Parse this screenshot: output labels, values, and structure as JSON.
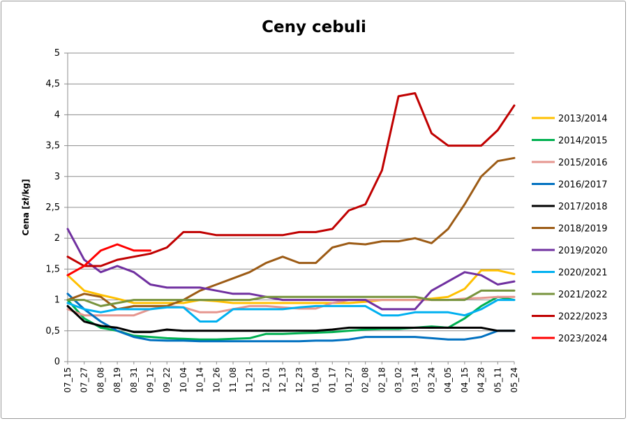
{
  "chart_data": {
    "type": "line",
    "title": "Ceny cebuli",
    "ylabel": "Cena [zł/kg]",
    "xlabel": "",
    "ylim": [
      0,
      5
    ],
    "yticks": [
      "0",
      "0,5",
      "1",
      "1,5",
      "2",
      "2,5",
      "3",
      "3,5",
      "4",
      "4,5",
      "5"
    ],
    "grid": "horizontal",
    "legend_position": "right",
    "categories": [
      "07_15",
      "07_27",
      "08_08",
      "08_19",
      "08_31",
      "09_12",
      "09_22",
      "10_04",
      "10_14",
      "10_26",
      "11_08",
      "11_21",
      "12_01",
      "12_13",
      "12_23",
      "01_04",
      "01_17",
      "01_27",
      "02_08",
      "02_18",
      "03_02",
      "03_14",
      "03_24",
      "04_05",
      "04_15",
      "04_28",
      "05_11",
      "05_24"
    ],
    "series": [
      {
        "name": "2013/2014",
        "color": "#FFC000",
        "values": [
          1.4,
          1.15,
          1.08,
          1.02,
          0.95,
          0.95,
          0.95,
          0.95,
          1.0,
          0.98,
          0.95,
          0.95,
          0.95,
          0.95,
          0.95,
          0.95,
          0.95,
          0.95,
          0.97,
          1.0,
          1.0,
          1.0,
          1.02,
          1.05,
          1.18,
          1.48,
          1.48,
          1.42
        ]
      },
      {
        "name": "2014/2015",
        "color": "#00B050",
        "values": [
          1.0,
          0.7,
          0.55,
          0.5,
          0.42,
          0.4,
          0.38,
          0.37,
          0.36,
          0.36,
          0.37,
          0.38,
          0.45,
          0.45,
          0.46,
          0.47,
          0.48,
          0.5,
          0.52,
          0.53,
          0.53,
          0.55,
          0.57,
          0.55,
          0.7,
          0.9,
          1.05,
          1.0
        ]
      },
      {
        "name": "2015/2016",
        "color": "#E6968F",
        "values": [
          0.85,
          0.75,
          0.75,
          0.75,
          0.75,
          0.85,
          0.9,
          0.88,
          0.8,
          0.8,
          0.85,
          0.9,
          0.9,
          0.88,
          0.86,
          0.86,
          0.95,
          1.0,
          1.0,
          1.0,
          1.0,
          1.0,
          1.0,
          1.0,
          1.02,
          1.03,
          1.05,
          1.05
        ]
      },
      {
        "name": "2016/2017",
        "color": "#0070C0",
        "values": [
          1.1,
          0.85,
          0.65,
          0.5,
          0.4,
          0.35,
          0.34,
          0.34,
          0.33,
          0.33,
          0.33,
          0.33,
          0.33,
          0.33,
          0.33,
          0.34,
          0.34,
          0.36,
          0.4,
          0.4,
          0.4,
          0.4,
          0.38,
          0.36,
          0.36,
          0.4,
          0.5,
          0.5
        ]
      },
      {
        "name": "2017/2018",
        "color": "#000000",
        "values": [
          0.9,
          0.65,
          0.58,
          0.55,
          0.48,
          0.48,
          0.52,
          0.5,
          0.5,
          0.5,
          0.5,
          0.5,
          0.5,
          0.5,
          0.5,
          0.5,
          0.52,
          0.55,
          0.55,
          0.55,
          0.55,
          0.55,
          0.55,
          0.55,
          0.55,
          0.55,
          0.5,
          0.5
        ]
      },
      {
        "name": "2018/2019",
        "color": "#9C5B15",
        "values": [
          1.0,
          1.1,
          1.05,
          0.85,
          0.9,
          0.9,
          0.9,
          1.0,
          1.15,
          1.25,
          1.35,
          1.45,
          1.6,
          1.7,
          1.6,
          1.6,
          1.85,
          1.92,
          1.9,
          1.95,
          1.95,
          2.0,
          1.92,
          2.15,
          2.55,
          3.0,
          3.25,
          3.3
        ]
      },
      {
        "name": "2019/2020",
        "color": "#7030A0",
        "values": [
          2.15,
          1.65,
          1.45,
          1.55,
          1.45,
          1.25,
          1.2,
          1.2,
          1.2,
          1.15,
          1.1,
          1.1,
          1.05,
          1.0,
          1.0,
          1.0,
          1.0,
          1.0,
          1.0,
          0.85,
          0.85,
          0.85,
          1.15,
          1.3,
          1.45,
          1.4,
          1.25,
          1.3
        ]
      },
      {
        "name": "2020/2021",
        "color": "#00B0F0",
        "values": [
          0.95,
          0.85,
          0.8,
          0.85,
          0.85,
          0.85,
          0.88,
          0.88,
          0.65,
          0.65,
          0.85,
          0.85,
          0.85,
          0.85,
          0.88,
          0.9,
          0.9,
          0.9,
          0.9,
          0.75,
          0.75,
          0.8,
          0.8,
          0.8,
          0.75,
          0.85,
          1.0,
          1.0
        ]
      },
      {
        "name": "2021/2022",
        "color": "#77933C",
        "values": [
          1.0,
          1.0,
          0.9,
          0.95,
          1.0,
          1.0,
          1.0,
          1.0,
          1.0,
          1.0,
          1.0,
          1.0,
          1.05,
          1.05,
          1.05,
          1.05,
          1.05,
          1.05,
          1.05,
          1.05,
          1.05,
          1.05,
          1.0,
          1.0,
          1.0,
          1.15,
          1.15,
          1.15
        ]
      },
      {
        "name": "2022/2023",
        "color": "#C00000",
        "values": [
          1.7,
          1.55,
          1.55,
          1.65,
          1.7,
          1.75,
          1.85,
          2.1,
          2.1,
          2.05,
          2.05,
          2.05,
          2.05,
          2.05,
          2.1,
          2.1,
          2.15,
          2.45,
          2.55,
          3.1,
          4.3,
          4.35,
          3.7,
          3.5,
          3.5,
          3.5,
          3.75,
          4.15
        ]
      },
      {
        "name": "2023/2024",
        "color": "#FF0000",
        "values": [
          1.4,
          1.55,
          1.8,
          1.9,
          1.8,
          1.8,
          null,
          null,
          null,
          null,
          null,
          null,
          null,
          null,
          null,
          null,
          null,
          null,
          null,
          null,
          null,
          null,
          null,
          null,
          null,
          null,
          null,
          null
        ]
      }
    ]
  }
}
